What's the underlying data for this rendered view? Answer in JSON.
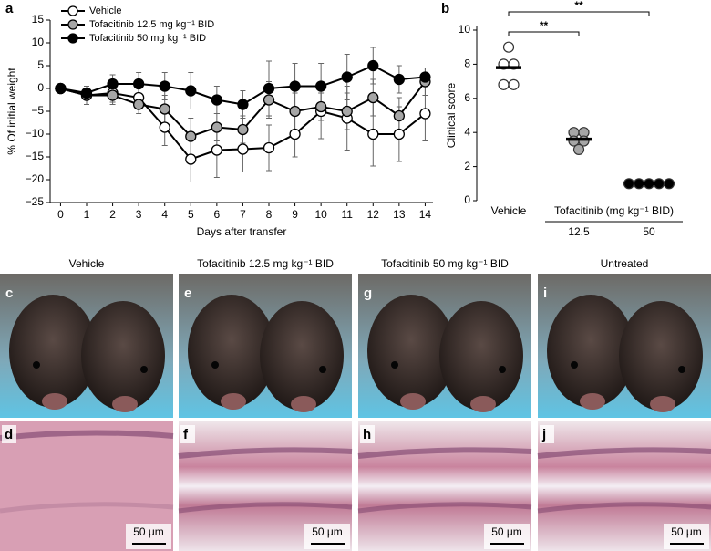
{
  "chart_data": [
    {
      "type": "line",
      "panel": "a",
      "x_label": "Days after transfer",
      "y_label": "% Of initial weight",
      "x": [
        0,
        1,
        2,
        3,
        4,
        5,
        6,
        7,
        8,
        9,
        10,
        11,
        12,
        13,
        14
      ],
      "xlim": [
        -0.4,
        14.3
      ],
      "xticks": [
        0,
        1,
        2,
        3,
        4,
        5,
        6,
        7,
        8,
        9,
        10,
        11,
        12,
        13,
        14
      ],
      "ylim": [
        -25,
        15
      ],
      "yticks": [
        {
          "value": -25,
          "label": "−25"
        },
        {
          "value": -20,
          "label": "−20"
        },
        {
          "value": -15,
          "label": "−15"
        },
        {
          "value": -10,
          "label": "−10"
        },
        {
          "value": -5,
          "label": "−5"
        },
        0,
        5,
        10,
        15
      ],
      "legend": "upper left",
      "series": [
        {
          "name": "Vehicle",
          "color": "#ffffff",
          "values": [
            0,
            -1.5,
            -1,
            -2,
            -8.5,
            -15.5,
            -13.5,
            -13.3,
            -13,
            -10,
            -5,
            -6.5,
            -10,
            -10,
            -5.5
          ],
          "errors": [
            0,
            2,
            2,
            2.5,
            4,
            5,
            6,
            5,
            5,
            5,
            6,
            7,
            7,
            6,
            6
          ]
        },
        {
          "name": "Tofacitinib 12.5 mg kg⁻¹ BID",
          "color": "#a6a6a6",
          "values": [
            0,
            -1.5,
            -1.5,
            -3.5,
            -4.5,
            -10.5,
            -8.5,
            -9,
            -2.5,
            -5,
            -4,
            -5,
            -2,
            -6,
            1.5
          ],
          "errors": [
            0,
            2,
            2,
            2,
            3,
            4,
            3,
            3,
            4,
            4,
            3,
            4,
            4,
            4,
            3
          ]
        },
        {
          "name": "Tofacitinib 50 mg kg⁻¹ BID",
          "color": "#000000",
          "values": [
            0,
            -1,
            1,
            1,
            0.5,
            -0.5,
            -2.5,
            -3.5,
            0,
            0.5,
            0.5,
            2.5,
            5,
            2,
            2.5
          ],
          "errors": [
            0,
            1.5,
            2,
            2.5,
            3,
            4,
            3,
            3,
            6,
            5,
            5,
            5,
            4,
            3,
            2
          ]
        }
      ]
    },
    {
      "type": "dot",
      "panel": "b",
      "y_label": "Clinical score",
      "categories": [
        "Vehicle",
        "12.5",
        "50"
      ],
      "group_label": "Tofacitinib (mg kg⁻¹ BID)",
      "ylim": [
        0,
        10
      ],
      "yticks": [
        0,
        2,
        4,
        6,
        8,
        10
      ],
      "points": [
        [
          9,
          8,
          8,
          6.8,
          6.8
        ],
        [
          4,
          4,
          3.5,
          3.5,
          3
        ],
        [
          1,
          1,
          1,
          1,
          1
        ]
      ],
      "colors": [
        "#ffffff",
        "#a6a6a6",
        "#000000"
      ],
      "means": [
        7.8,
        3.6,
        1
      ],
      "significance": [
        "**",
        "**"
      ]
    }
  ],
  "panels": {
    "photos": [
      {
        "letter": "c",
        "title": "Vehicle"
      },
      {
        "letter": "e",
        "title": "Tofacitinib 12.5 mg kg⁻¹ BID"
      },
      {
        "letter": "g",
        "title": "Tofacitinib 50 mg kg⁻¹ BID"
      },
      {
        "letter": "i",
        "title": "Untreated"
      }
    ],
    "histology": [
      {
        "letter": "d",
        "scale": "50 μm"
      },
      {
        "letter": "f",
        "scale": "50 μm"
      },
      {
        "letter": "h",
        "scale": "50 μm"
      },
      {
        "letter": "j",
        "scale": "50 μm"
      }
    ]
  }
}
